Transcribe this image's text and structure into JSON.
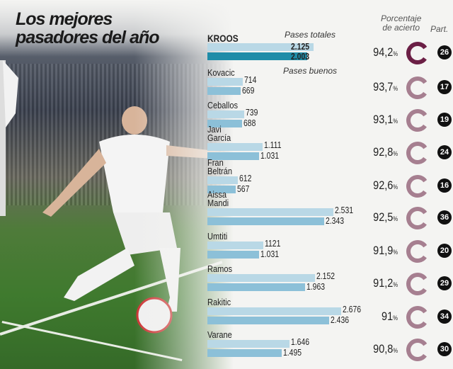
{
  "title": [
    "Los mejores",
    "pasadores del año"
  ],
  "headers": {
    "total": "Pases totales",
    "good": "Pases buenos",
    "pct": "Porcentaje\nde acierto",
    "matches": "Part."
  },
  "colors": {
    "total_bar": "#b9d8e6",
    "good_bar": "#8cc0d8",
    "kroos_good_bar": "#1f8ca8",
    "kroos_ring": "#6b1f45",
    "ring": "#a67f90"
  },
  "chart_data": {
    "type": "bar",
    "orientation": "horizontal",
    "categories": [
      "KROOS",
      "Kovacic",
      "Ceballos",
      "Javi García",
      "Fran Beltrán",
      "Aissa Mandi",
      "Umtiti",
      "Ramos",
      "Rakitic",
      "Varane"
    ],
    "series": [
      {
        "name": "Pases totales",
        "values": [
          2125,
          714,
          739,
          1111,
          612,
          2531,
          1121,
          2152,
          2676,
          1646
        ],
        "labels": [
          "2.125",
          "714",
          "739",
          "1.111",
          "612",
          "2.531",
          "1121",
          "2.152",
          "2.676",
          "1.646"
        ]
      },
      {
        "name": "Pases buenos",
        "values": [
          2003,
          669,
          688,
          1031,
          567,
          2343,
          1031,
          1963,
          2436,
          1495
        ],
        "labels": [
          "2.003",
          "669",
          "688",
          "1.031",
          "567",
          "2.343",
          "1.031",
          "1.963",
          "2.436",
          "1.495"
        ]
      }
    ],
    "accuracy": [
      "94,2",
      "93,7",
      "93,1",
      "92,8",
      "92,6",
      "92,5",
      "91,9",
      "91,2",
      "91",
      "90,8"
    ],
    "matches": [
      "26",
      "17",
      "19",
      "24",
      "16",
      "36",
      "20",
      "29",
      "34",
      "30"
    ],
    "pct_symbol": "%"
  }
}
